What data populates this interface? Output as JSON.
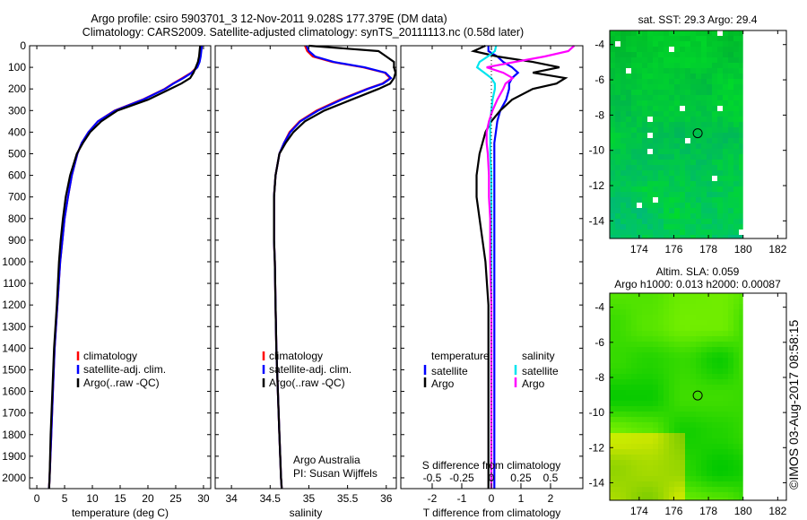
{
  "title": {
    "line1": "Argo profile: csiro 5903701_3 12-Nov-2011 9.028S 177.379E (DM data)",
    "line2": "Climatology: CARS2009. Satellite-adjusted climatology: synTS_20111113.nc (0.58d later)"
  },
  "stamp": "©IMOS 03-Aug-2017 08:58:15",
  "credit": {
    "line1": "Argo Australia",
    "line2": "PI: Susan Wijffels"
  },
  "colors": {
    "climatology": "#ff0000",
    "satellite": "#0000ff",
    "argo": "#000000",
    "sat_s": "#00e5ee",
    "argo_s": "#ff00ff"
  },
  "chart_data": [
    {
      "type": "line",
      "name": "temperature",
      "xlabel": "temperature (deg C)",
      "xlim": [
        -1.3,
        31.3
      ],
      "ylim": [
        0,
        2050
      ],
      "yticks": [
        0,
        100,
        200,
        300,
        400,
        500,
        600,
        700,
        800,
        900,
        1000,
        1100,
        1200,
        1300,
        1400,
        1500,
        1600,
        1700,
        1800,
        1900,
        2000
      ],
      "xticks": [
        0,
        5,
        10,
        15,
        20,
        25,
        30
      ],
      "depth": [
        0,
        25,
        50,
        75,
        100,
        125,
        150,
        175,
        200,
        250,
        300,
        350,
        400,
        450,
        500,
        600,
        700,
        800,
        900,
        1000,
        1200,
        1400,
        1600,
        1800,
        2000,
        2050
      ],
      "series": [
        {
          "name": "climatology",
          "color": "#ff0000",
          "values": [
            29.6,
            29.5,
            29.4,
            29.2,
            28.8,
            27.8,
            26.2,
            24.5,
            23,
            19,
            14,
            11,
            9.3,
            8.1,
            7.3,
            6.3,
            5.6,
            5.0,
            4.6,
            4.2,
            3.7,
            3.2,
            2.9,
            2.6,
            2.3,
            2.2
          ]
        },
        {
          "name": "satellite-adj. clim.",
          "color": "#0000ff",
          "values": [
            29.7,
            29.6,
            29.5,
            29.3,
            28.9,
            27.9,
            26.4,
            24.6,
            23.1,
            19.1,
            14.1,
            11,
            9.3,
            8.1,
            7.3,
            6.3,
            5.6,
            5.0,
            4.6,
            4.2,
            3.7,
            3.2,
            2.9,
            2.6,
            2.3,
            2.2
          ]
        },
        {
          "name": "Argo(..raw -QC)",
          "color": "#000000",
          "values": [
            29.4,
            29.3,
            29.2,
            29.0,
            28.6,
            28.2,
            27.6,
            26,
            24,
            20,
            14.5,
            11.6,
            9.6,
            8.3,
            7.2,
            6.0,
            5.2,
            4.7,
            4.3,
            4.0,
            3.6,
            3.1,
            2.8,
            2.5,
            2.3,
            2.2
          ]
        }
      ],
      "legend": [
        "climatology",
        "satellite-adj. clim.",
        "Argo(..raw -QC)"
      ]
    },
    {
      "type": "line",
      "name": "salinity",
      "xlabel": "salinity",
      "xlim": [
        33.79,
        36.13
      ],
      "ylim": [
        0,
        2050
      ],
      "xticks": [
        34,
        34.5,
        35,
        35.5,
        36
      ],
      "series": [
        {
          "name": "climatology",
          "color": "#ff0000",
          "values": [
            34.95,
            34.98,
            35.05,
            35.3,
            35.7,
            35.98,
            36.05,
            35.95,
            35.75,
            35.4,
            35.1,
            34.88,
            34.75,
            34.68,
            34.62,
            34.57,
            34.55,
            34.55,
            34.55,
            34.56,
            34.57,
            34.58,
            34.6,
            34.62,
            34.64,
            34.65
          ]
        },
        {
          "name": "satellite-adj. clim.",
          "color": "#0000ff",
          "values": [
            34.97,
            35.0,
            35.08,
            35.32,
            35.72,
            35.99,
            36.06,
            35.96,
            35.76,
            35.42,
            35.12,
            34.89,
            34.76,
            34.68,
            34.62,
            34.57,
            34.55,
            34.55,
            34.55,
            34.56,
            34.57,
            34.58,
            34.6,
            34.62,
            34.64,
            34.65
          ]
        },
        {
          "name": "Argo(..raw -QC)",
          "color": "#000000",
          "values": [
            35.0,
            35.9,
            36.0,
            36.1,
            36.1,
            36.12,
            36.1,
            36.05,
            35.9,
            35.55,
            35.2,
            34.95,
            34.8,
            34.7,
            34.62,
            34.57,
            34.55,
            34.55,
            34.55,
            34.56,
            34.57,
            34.58,
            34.6,
            34.62,
            34.64,
            34.65
          ]
        }
      ],
      "legend": [
        "climatology",
        "satellite-adj. clim.",
        "Argo(..raw -QC)"
      ]
    },
    {
      "type": "line",
      "name": "difference",
      "xlabel": "T difference from climatology",
      "x2label": "S difference from climatology",
      "xlim": [
        -3.06,
        3.09
      ],
      "x2lim": [
        -0.765,
        0.773
      ],
      "xticks": [
        -2,
        -1,
        0,
        1,
        2
      ],
      "x2ticks": [
        "-0.5",
        "-0.25",
        "0",
        "0.25",
        "0.5"
      ],
      "series": [
        {
          "name": "satellite",
          "group": "temperature",
          "color": "#0000ff",
          "axis": "T",
          "values": [
            -0.1,
            -0.1,
            0.2,
            0.4,
            0.7,
            0.9,
            0.7,
            0.6,
            0.6,
            0.5,
            0.3,
            0.2,
            0.15,
            0.1,
            0.1,
            0.1,
            0.1,
            0.1,
            0.1,
            0.1,
            0.1,
            0.1,
            0.1,
            0.1,
            0.1,
            0.1
          ]
        },
        {
          "name": "Argo",
          "group": "temperature",
          "color": "#000000",
          "axis": "T",
          "values": [
            -0.2,
            -0.6,
            0.2,
            1.4,
            2.3,
            1.4,
            2.5,
            2.2,
            1.4,
            0.7,
            0.3,
            0,
            -0.2,
            -0.3,
            -0.4,
            -0.5,
            -0.5,
            -0.4,
            -0.3,
            -0.2,
            -0.1,
            -0.1,
            -0.1,
            -0.1,
            -0.1,
            -0.1
          ]
        },
        {
          "name": "satellite",
          "group": "salinity",
          "color": "#00e5ee",
          "axis": "S",
          "values": [
            0.04,
            0.03,
            -0.03,
            -0.1,
            -0.12,
            -0.06,
            0,
            0.03,
            0.03,
            0.01,
            0,
            -0.01,
            -0.01,
            -0.01,
            -0.01,
            0,
            0,
            0,
            0,
            0,
            0,
            0,
            0,
            0,
            0,
            0
          ]
        },
        {
          "name": "Argo",
          "group": "salinity",
          "color": "#ff00ff",
          "axis": "S",
          "values": [
            0.7,
            0.65,
            0.45,
            0.2,
            -0.04,
            0.1,
            0.18,
            0.12,
            0.1,
            0.05,
            0.01,
            -0.02,
            -0.04,
            -0.04,
            -0.03,
            -0.02,
            -0.02,
            -0.01,
            -0.01,
            -0.01,
            0,
            0,
            0,
            0,
            0,
            0
          ]
        }
      ],
      "legend": {
        "temperature": "temperature",
        "salinity": "salinity",
        "satellite": "satellite",
        "argo": "Argo"
      }
    },
    {
      "type": "heatmap",
      "name": "sst-map",
      "title": "sat. SST: 29.3 Argo: 29.4",
      "xlim": [
        172.3,
        182.5
      ],
      "ylim": [
        -15,
        -3.2
      ],
      "xticks": [
        174,
        176,
        178,
        180,
        182
      ],
      "yticks": [
        -4,
        -6,
        -8,
        -10,
        -12,
        -14
      ],
      "data_east_limit": 180,
      "marker": [
        177.379,
        -9.028
      ]
    },
    {
      "type": "heatmap",
      "name": "sla-map",
      "title": "Altim. SLA: 0.059",
      "subtitle": "Argo h1000: 0.013 h2000: 0.00087",
      "xlim": [
        172.3,
        182.5
      ],
      "ylim": [
        -15,
        -3.2
      ],
      "xticks": [
        174,
        176,
        178,
        180,
        182
      ],
      "yticks": [
        -4,
        -6,
        -8,
        -10,
        -12,
        -14
      ],
      "data_east_limit": 180,
      "marker": [
        177.379,
        -9.028
      ]
    }
  ]
}
